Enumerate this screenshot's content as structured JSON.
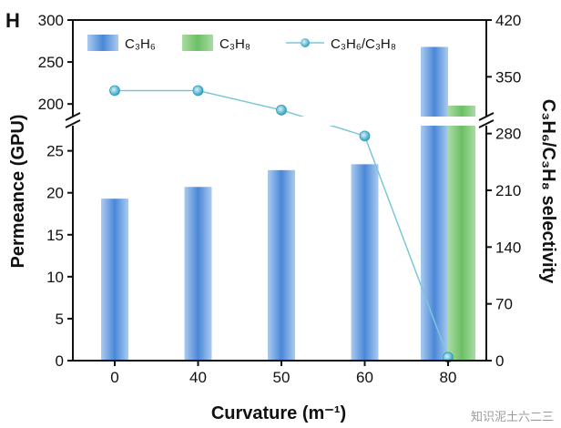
{
  "panel_label": "H",
  "watermark": "知识泥土六二三",
  "chart_data": {
    "type": "bar",
    "xlabel": "Curvature (m⁻¹)",
    "ylabel": "Permeance (GPU)",
    "y2label": "C₃H₆/C₃H₈ selectivity",
    "categories": [
      "0",
      "40",
      "50",
      "60",
      "80"
    ],
    "y_break": {
      "lower_range": [
        0,
        28
      ],
      "upper_range": [
        185,
        300
      ]
    },
    "ylim": [
      0,
      300
    ],
    "y2lim": [
      0,
      420
    ],
    "yticks_lower": [
      "0",
      "5",
      "10",
      "15",
      "20",
      "25"
    ],
    "yticks_upper": [
      "200",
      "250",
      "300"
    ],
    "y2ticks": [
      "0",
      "70",
      "140",
      "210",
      "280",
      "350",
      "420"
    ],
    "series": [
      {
        "name": "C₃H₆",
        "kind": "bar",
        "axis": "left",
        "values": [
          19.3,
          20.7,
          22.7,
          23.4,
          268
        ]
      },
      {
        "name": "C₃H₈",
        "kind": "bar",
        "axis": "left",
        "values": [
          null,
          null,
          null,
          null,
          198
        ]
      },
      {
        "name": "C₃H₆/C₃H₈",
        "kind": "line",
        "axis": "right",
        "values": [
          333,
          333,
          309,
          277,
          4
        ]
      }
    ],
    "legend_position": "top",
    "colors": {
      "bar1_light": "#aacbf0",
      "bar1_dark": "#4a87d8",
      "bar2_light": "#a9dca4",
      "bar2_dark": "#6cbf64",
      "line": "#7cc6d9",
      "marker": "#3aa6c6"
    }
  }
}
